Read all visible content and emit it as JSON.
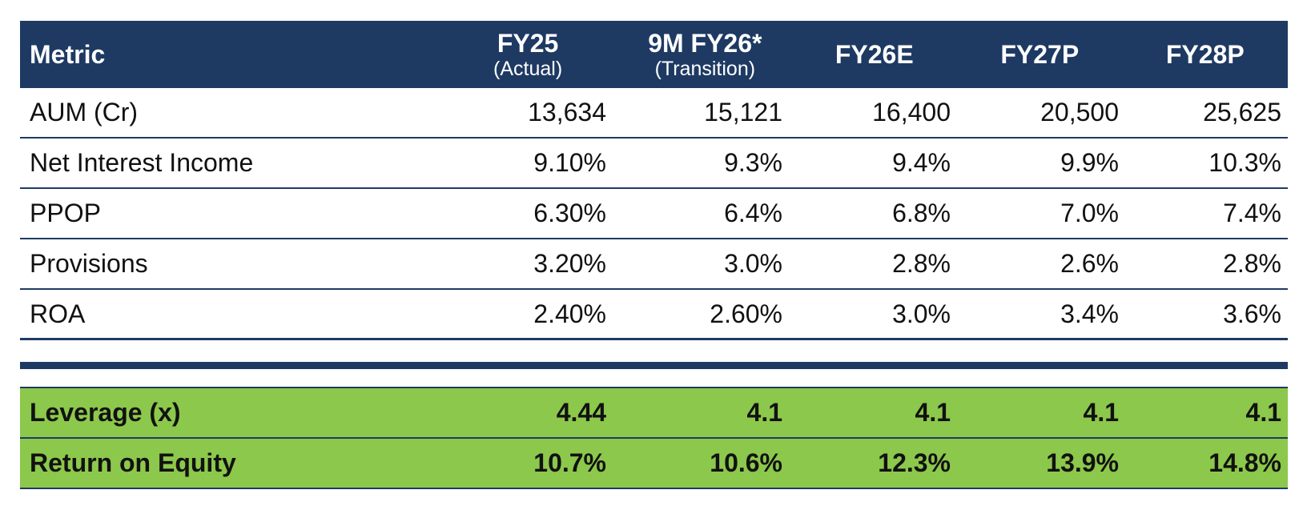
{
  "header": {
    "metric": "Metric",
    "columns": [
      {
        "title": "FY25",
        "sub": "(Actual)"
      },
      {
        "title": "9M FY26*",
        "sub": "(Transition)"
      },
      {
        "title": "FY26E",
        "sub": ""
      },
      {
        "title": "FY27P",
        "sub": ""
      },
      {
        "title": "FY28P",
        "sub": ""
      }
    ]
  },
  "rows": [
    {
      "label": "AUM (Cr)",
      "values": [
        "13,634",
        "15,121",
        "16,400",
        "20,500",
        "25,625"
      ]
    },
    {
      "label": "Net Interest Income",
      "values": [
        "9.10%",
        "9.3%",
        "9.4%",
        "9.9%",
        "10.3%"
      ]
    },
    {
      "label": "PPOP",
      "values": [
        "6.30%",
        "6.4%",
        "6.8%",
        "7.0%",
        "7.4%"
      ]
    },
    {
      "label": "Provisions",
      "values": [
        "3.20%",
        "3.0%",
        "2.8%",
        "2.6%",
        "2.8%"
      ]
    },
    {
      "label": "ROA",
      "values": [
        "2.40%",
        "2.60%",
        "3.0%",
        "3.4%",
        "3.6%"
      ]
    }
  ],
  "highlight_rows": [
    {
      "label": "Leverage (x)",
      "values": [
        "4.44",
        "4.1",
        "4.1",
        "4.1",
        "4.1"
      ]
    },
    {
      "label": "Return on Equity",
      "values": [
        "10.7%",
        "10.6%",
        "12.3%",
        "13.9%",
        "14.8%"
      ]
    }
  ],
  "colors": {
    "header_bg": "#1e3a63",
    "highlight_bg": "#8cc84b",
    "rule": "#1e3a63"
  }
}
